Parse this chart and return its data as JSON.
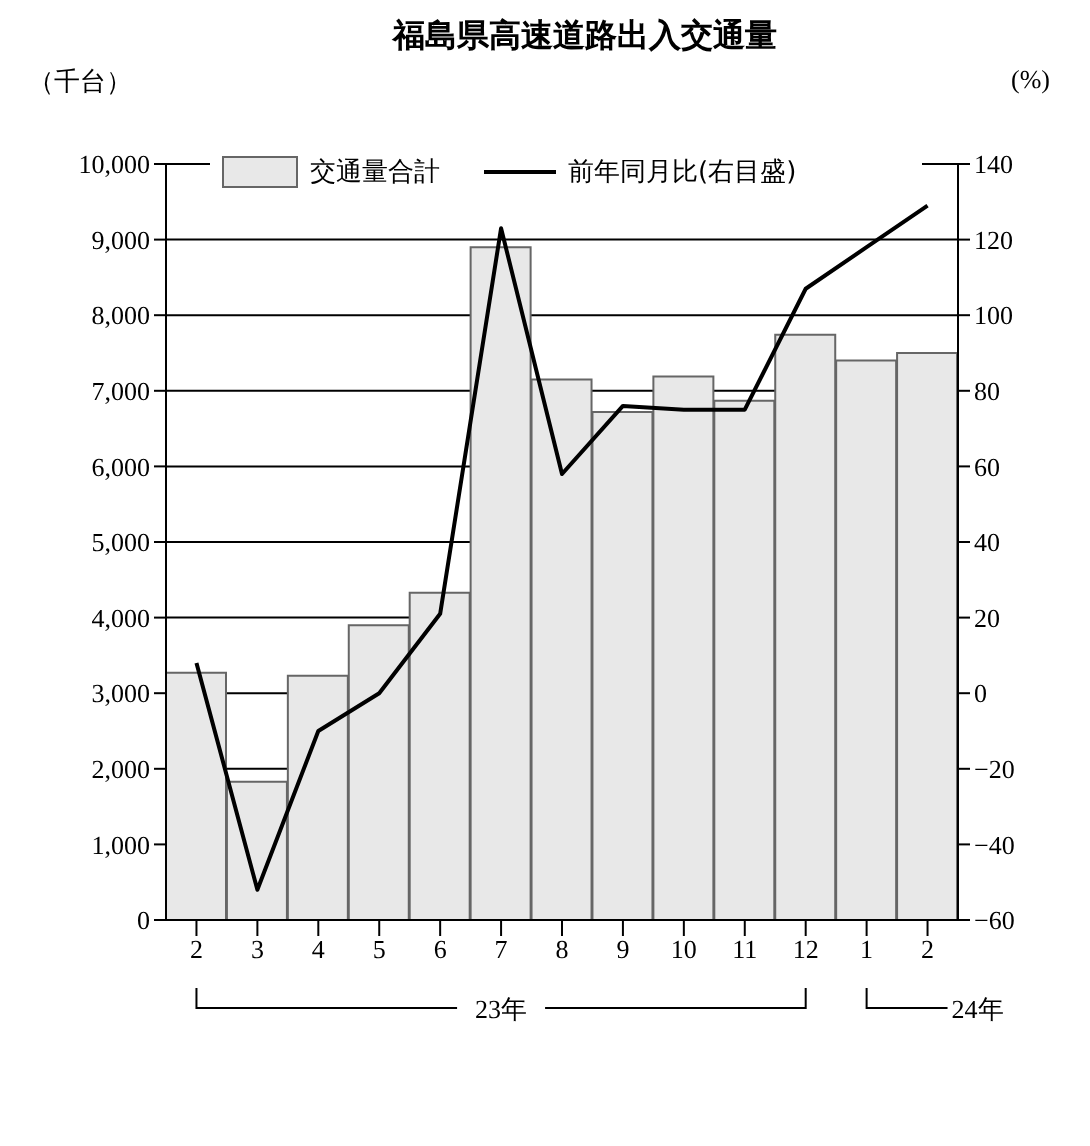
{
  "chart_data": {
    "type": "bar",
    "title": "福島県高速道路出入交通量",
    "ylabel": "（千台）",
    "y2label": "(%)",
    "categories": [
      "2",
      "3",
      "4",
      "5",
      "6",
      "7",
      "8",
      "9",
      "10",
      "11",
      "12",
      "1",
      "2"
    ],
    "series": [
      {
        "name": "交通量合計",
        "color": "#e8e8e8",
        "values": [
          3270,
          1830,
          3230,
          3900,
          4330,
          8900,
          7150,
          6720,
          7190,
          6870,
          7740,
          7400,
          7500
        ]
      },
      {
        "name": "前年同月比(右目盛)",
        "type": "line",
        "axis": "y2",
        "color": "#000000",
        "values": [
          8,
          -52,
          -10,
          0,
          21,
          123,
          58,
          76,
          75,
          75,
          107,
          118,
          129
        ]
      }
    ],
    "ylim": [
      0,
      10000
    ],
    "yticks": [
      0,
      {
        "value": 1000,
        "label": "1,000"
      },
      {
        "value": 2000,
        "label": "2,000"
      },
      {
        "value": 3000,
        "label": "3,000"
      },
      {
        "value": 4000,
        "label": "4,000"
      },
      {
        "value": 5000,
        "label": "5,000"
      },
      {
        "value": 6000,
        "label": "6,000"
      },
      {
        "value": 7000,
        "label": "7,000"
      },
      {
        "value": 8000,
        "label": "8,000"
      },
      {
        "value": 9000,
        "label": "9,000"
      },
      {
        "value": 10000,
        "label": "10,000"
      }
    ],
    "y2lim": [
      -60,
      140
    ],
    "y2ticks": [
      -60,
      -40,
      -20,
      0,
      20,
      40,
      60,
      80,
      100,
      120,
      140
    ],
    "grid": "y",
    "legend": "top",
    "marker": "none",
    "line_style": "solid",
    "annotations": [
      "23年",
      "24年"
    ]
  }
}
